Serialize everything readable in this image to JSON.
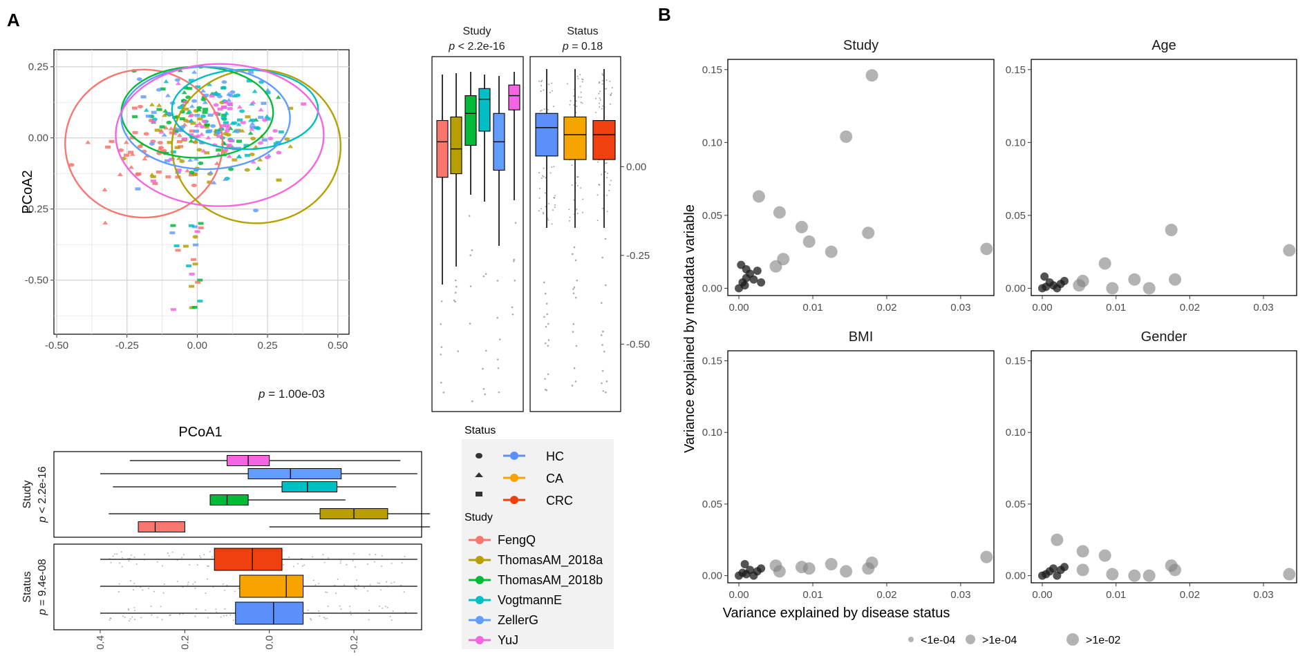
{
  "figure": {
    "panel_a_letter": "A",
    "panel_b_letter": "B",
    "colors": {
      "FengQ": "#f8766d",
      "ThomasAM_2018a": "#b79f00",
      "ThomasAM_2018b": "#00ba38",
      "VogtmannE": "#00bfc4",
      "ZellerG": "#619cff",
      "YuJ": "#f564e3",
      "HC": "#5b8ff9",
      "CA": "#f7a400",
      "CRC": "#f0400f",
      "bubble": "#808080",
      "grid": "#e3e3e3"
    }
  },
  "chart_data": [
    {
      "id": "pcoa",
      "type": "scatter",
      "title": "",
      "xlabel": "PCoA1",
      "ylabel": "PCoA2",
      "xlim": [
        -0.5,
        0.5
      ],
      "ylim": [
        -0.65,
        0.27
      ],
      "xticks": [
        "-0.50",
        "-0.25",
        "0.00",
        "0.25",
        "0.50"
      ],
      "yticks": [
        "0.25",
        "0.00",
        "-0.25",
        "-0.50"
      ],
      "annotation": "p = 1.00e-03",
      "annotation_prefix": "p",
      "annotation_value": " = 1.00e-03",
      "ellipses": [
        {
          "study": "FengQ",
          "cx": -0.19,
          "cy": -0.02,
          "rx": 0.28,
          "ry": 0.26
        },
        {
          "study": "ThomasAM_2018a",
          "cx": 0.21,
          "cy": -0.03,
          "rx": 0.3,
          "ry": 0.27
        },
        {
          "study": "ThomasAM_2018b",
          "cx": 0.0,
          "cy": 0.09,
          "rx": 0.27,
          "ry": 0.16
        },
        {
          "study": "VogtmannE",
          "cx": 0.17,
          "cy": 0.1,
          "rx": 0.26,
          "ry": 0.14
        },
        {
          "study": "ZellerG",
          "cx": 0.03,
          "cy": 0.07,
          "rx": 0.3,
          "ry": 0.18
        },
        {
          "study": "YuJ",
          "cx": 0.08,
          "cy": 0.01,
          "rx": 0.37,
          "ry": 0.25
        }
      ]
    },
    {
      "id": "pcoa2_boxes_study",
      "type": "box",
      "strip_title": "Study",
      "strip_p_prefix": "p",
      "strip_p": " < 2.2e-16",
      "ylim": [
        -0.65,
        0.27
      ],
      "axis_ticks": [
        "0.00",
        "-0.25",
        "-0.50"
      ],
      "boxes": [
        {
          "group": "FengQ",
          "q1": -0.03,
          "median": 0.07,
          "q3": 0.13
        },
        {
          "group": "ThomasAM_2018a",
          "q1": -0.02,
          "median": 0.05,
          "q3": 0.14
        },
        {
          "group": "ThomasAM_2018b",
          "q1": 0.06,
          "median": 0.15,
          "q3": 0.2
        },
        {
          "group": "VogtmannE",
          "q1": 0.1,
          "median": 0.19,
          "q3": 0.22
        },
        {
          "group": "ZellerG",
          "q1": -0.01,
          "median": 0.07,
          "q3": 0.15
        },
        {
          "group": "YuJ",
          "q1": 0.16,
          "median": 0.2,
          "q3": 0.23
        }
      ]
    },
    {
      "id": "pcoa2_boxes_status",
      "type": "box",
      "strip_title": "Status",
      "strip_p_prefix": "p",
      "strip_p": " = 0.18",
      "boxes": [
        {
          "group": "HC",
          "q1": 0.03,
          "median": 0.11,
          "q3": 0.15
        },
        {
          "group": "CA",
          "q1": 0.02,
          "median": 0.09,
          "q3": 0.14
        },
        {
          "group": "CRC",
          "q1": 0.02,
          "median": 0.09,
          "q3": 0.13
        }
      ]
    },
    {
      "id": "pcoa1_boxes_study",
      "type": "box",
      "orientation": "horizontal",
      "strip_title": "Study",
      "strip_p_prefix": "p",
      "strip_p": " < 2.2e-16",
      "boxes": [
        {
          "group": "YuJ",
          "q1": 0.0,
          "median": 0.05,
          "q3": 0.1
        },
        {
          "group": "ZellerG",
          "q1": -0.17,
          "median": -0.05,
          "q3": 0.05
        },
        {
          "group": "VogtmannE",
          "q1": -0.16,
          "median": -0.09,
          "q3": -0.03
        },
        {
          "group": "ThomasAM_2018b",
          "q1": 0.05,
          "median": 0.1,
          "q3": 0.14
        },
        {
          "group": "ThomasAM_2018a",
          "q1": -0.28,
          "median": -0.2,
          "q3": -0.12
        },
        {
          "group": "FengQ",
          "q1": 0.2,
          "median": 0.27,
          "q3": 0.31
        }
      ]
    },
    {
      "id": "pcoa1_boxes_status",
      "type": "box",
      "orientation": "horizontal",
      "strip_title": "Status",
      "strip_p_prefix": "p",
      "strip_p": " = 9.4e-08",
      "xticks": [
        "0.4",
        "0.2",
        "0.0",
        "-0.2"
      ],
      "boxes": [
        {
          "group": "CRC",
          "q1": -0.03,
          "median": 0.04,
          "q3": 0.13
        },
        {
          "group": "CA",
          "q1": -0.08,
          "median": -0.04,
          "q3": 0.07
        },
        {
          "group": "HC",
          "q1": -0.08,
          "median": -0.01,
          "q3": 0.08
        }
      ]
    },
    {
      "id": "variance_facets",
      "type": "scatter",
      "xlabel": "Variance explained by disease status",
      "ylabel": "Variance explained by metadata variable",
      "xlim": [
        -0.0015,
        0.0345
      ],
      "ylim": [
        -0.005,
        0.157
      ],
      "xticks": [
        "0.00",
        "0.01",
        "0.02",
        "0.03"
      ],
      "yticks": [
        "0.00",
        "0.05",
        "0.10",
        "0.15"
      ],
      "facets": [
        {
          "title": "Study",
          "points": [
            [
              0.0,
              0.0,
              2
            ],
            [
              0.0005,
              0.004,
              2
            ],
            [
              0.001,
              0.007,
              2
            ],
            [
              0.0015,
              0.01,
              2
            ],
            [
              0.0003,
              0.016,
              2
            ],
            [
              0.001,
              0.013,
              2
            ],
            [
              0.002,
              0.006,
              2
            ],
            [
              0.0008,
              0.002,
              2
            ],
            [
              0.0025,
              0.012,
              2
            ],
            [
              0.003,
              0.004,
              2
            ],
            [
              0.0027,
              0.063,
              3
            ],
            [
              0.0055,
              0.052,
              3
            ],
            [
              0.0085,
              0.042,
              3
            ],
            [
              0.0095,
              0.032,
              3
            ],
            [
              0.006,
              0.02,
              3
            ],
            [
              0.005,
              0.015,
              3
            ],
            [
              0.0125,
              0.025,
              3
            ],
            [
              0.0145,
              0.104,
              3
            ],
            [
              0.0175,
              0.038,
              3
            ],
            [
              0.018,
              0.146,
              3
            ],
            [
              0.0335,
              0.027,
              3
            ]
          ]
        },
        {
          "title": "Age",
          "points": [
            [
              0.0,
              0.0,
              2
            ],
            [
              0.0005,
              0.001,
              2
            ],
            [
              0.001,
              0.004,
              2
            ],
            [
              0.0015,
              0.002,
              2
            ],
            [
              0.002,
              0.0,
              2
            ],
            [
              0.0025,
              0.003,
              2
            ],
            [
              0.0003,
              0.008,
              2
            ],
            [
              0.003,
              0.005,
              2
            ],
            [
              0.005,
              0.002,
              3
            ],
            [
              0.0055,
              0.005,
              3
            ],
            [
              0.0085,
              0.017,
              3
            ],
            [
              0.0095,
              0.0,
              3
            ],
            [
              0.0125,
              0.006,
              3
            ],
            [
              0.0145,
              0.0,
              3
            ],
            [
              0.0175,
              0.04,
              3
            ],
            [
              0.018,
              0.006,
              3
            ],
            [
              0.0335,
              0.026,
              3
            ]
          ]
        },
        {
          "title": "BMI",
          "points": [
            [
              0.0,
              0.0,
              2
            ],
            [
              0.0005,
              0.002,
              2
            ],
            [
              0.001,
              0.001,
              2
            ],
            [
              0.0015,
              0.004,
              2
            ],
            [
              0.002,
              0.0,
              2
            ],
            [
              0.0025,
              0.003,
              2
            ],
            [
              0.0008,
              0.008,
              2
            ],
            [
              0.003,
              0.005,
              2
            ],
            [
              0.005,
              0.007,
              3
            ],
            [
              0.0055,
              0.003,
              3
            ],
            [
              0.0085,
              0.006,
              3
            ],
            [
              0.0095,
              0.005,
              3
            ],
            [
              0.0125,
              0.008,
              3
            ],
            [
              0.0145,
              0.003,
              3
            ],
            [
              0.0175,
              0.005,
              3
            ],
            [
              0.018,
              0.009,
              3
            ],
            [
              0.0335,
              0.013,
              3
            ]
          ]
        },
        {
          "title": "Gender",
          "points": [
            [
              0.0,
              0.0,
              2
            ],
            [
              0.0005,
              0.001,
              2
            ],
            [
              0.001,
              0.003,
              2
            ],
            [
              0.0015,
              0.005,
              2
            ],
            [
              0.002,
              0.0,
              2
            ],
            [
              0.0025,
              0.004,
              2
            ],
            [
              0.003,
              0.006,
              2
            ],
            [
              0.002,
              0.025,
              3
            ],
            [
              0.0055,
              0.004,
              3
            ],
            [
              0.0055,
              0.017,
              3
            ],
            [
              0.0085,
              0.014,
              3
            ],
            [
              0.0095,
              0.001,
              3
            ],
            [
              0.0125,
              0.0,
              3
            ],
            [
              0.0145,
              0.0,
              3
            ],
            [
              0.0175,
              0.007,
              3
            ],
            [
              0.018,
              0.004,
              3
            ],
            [
              0.0335,
              0.001,
              3
            ]
          ]
        }
      ],
      "size_legend": [
        "<1e-04",
        ">1e-04",
        ">1e-02"
      ]
    }
  ],
  "legend_a": {
    "status_title": "Status",
    "status_items": [
      "HC",
      "CA",
      "CRC"
    ],
    "study_title": "Study",
    "study_items": [
      "FengQ",
      "ThomasAM_2018a",
      "ThomasAM_2018b",
      "VogtmannE",
      "ZellerG",
      "YuJ"
    ]
  }
}
